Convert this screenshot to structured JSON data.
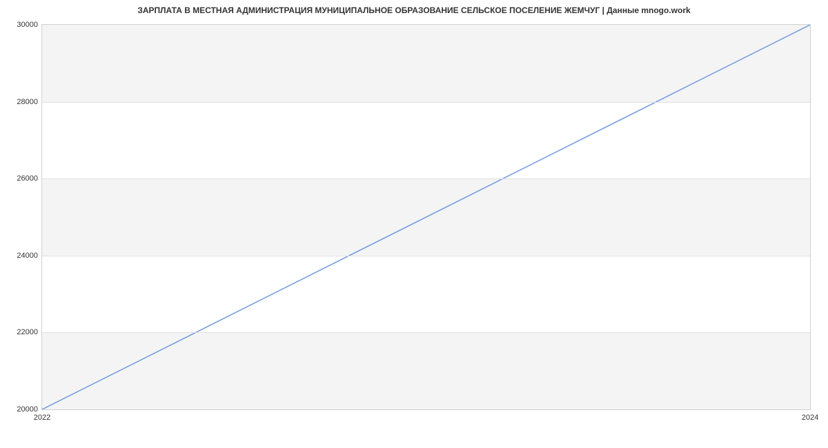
{
  "chart": {
    "type": "line",
    "title": "ЗАРПЛАТА В МЕСТНАЯ АДМИНИСТРАЦИЯ МУНИЦИПАЛЬНОЕ ОБРАЗОВАНИЕ СЕЛЬСКОЕ ПОСЕЛЕНИЕ ЖЕМЧУГ | Данные mnogo.work",
    "title_fontsize": 12,
    "background_color": "#ffffff",
    "plot_border_color": "#d0d0d0",
    "band_color": "#f4f4f4",
    "grid_color": "#e0e0e0",
    "tick_font_color": "#333333",
    "tick_fontsize": 11,
    "y_axis": {
      "min": 20000,
      "max": 30000,
      "ticks": [
        20000,
        22000,
        24000,
        26000,
        28000,
        30000
      ],
      "bands": [
        {
          "from": 20000,
          "to": 22000
        },
        {
          "from": 24000,
          "to": 26000
        },
        {
          "from": 28000,
          "to": 30000
        }
      ]
    },
    "x_axis": {
      "min": 2022,
      "max": 2024,
      "ticks": [
        2022,
        2024
      ]
    },
    "series": {
      "color": "#6f9ae4",
      "line_width": 1.5,
      "data": [
        {
          "x": 2022,
          "y": 20000
        },
        {
          "x": 2024,
          "y": 30000
        }
      ]
    }
  }
}
